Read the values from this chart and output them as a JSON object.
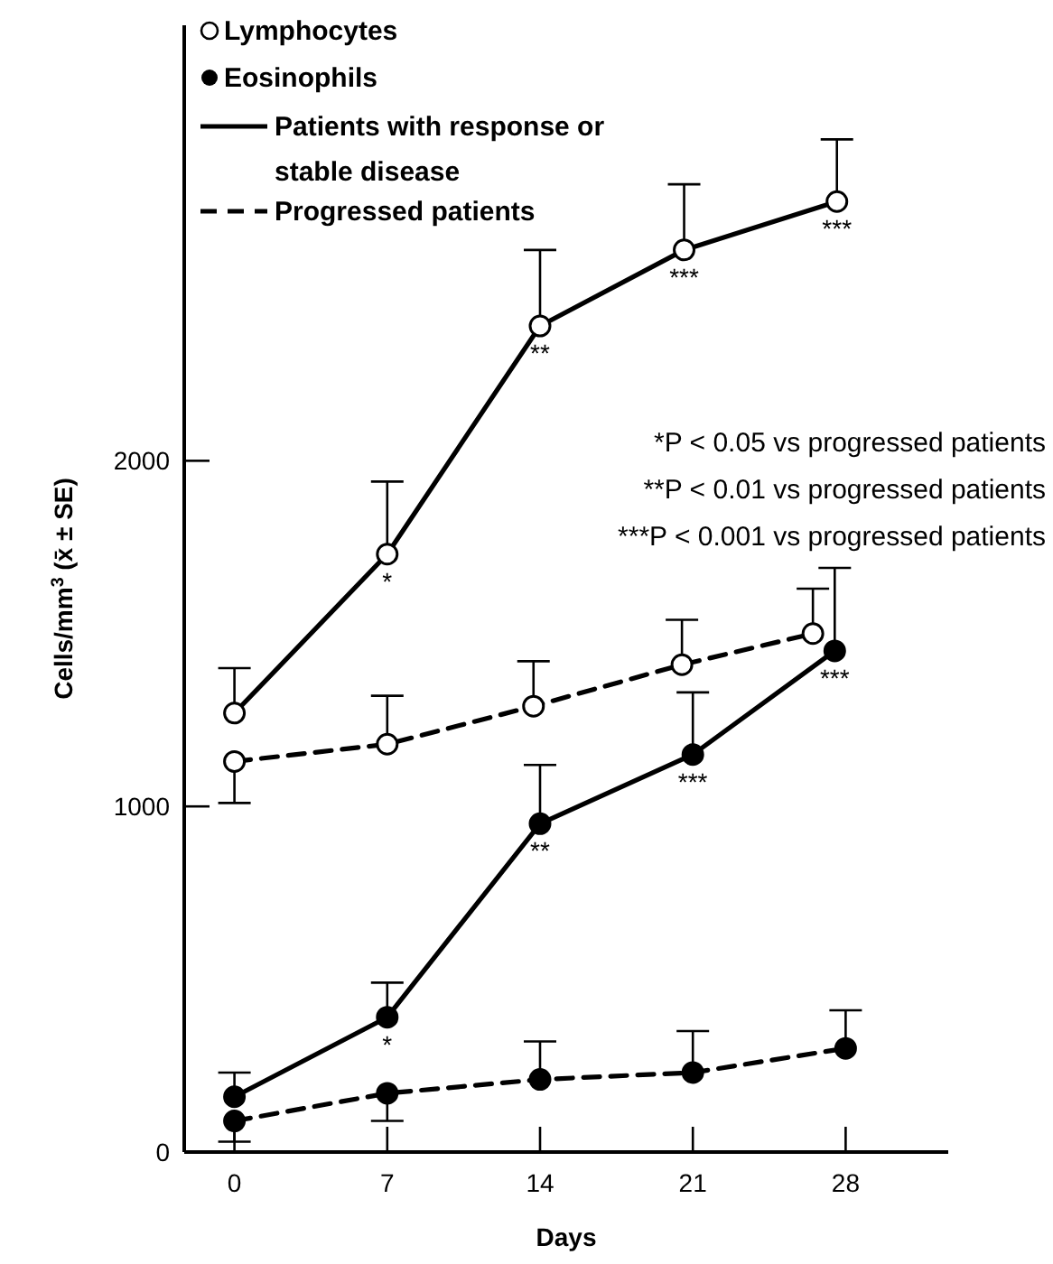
{
  "chart_data": {
    "type": "line",
    "xlabel": "Days",
    "ylabel": "Cells/mm$^{3}$ (x̄ ± SE)",
    "xlim": [
      -2.3,
      32.7
    ],
    "xticks": [
      0,
      7,
      14,
      21,
      28
    ],
    "ylim": [
      0,
      3260
    ],
    "yticks": [
      0,
      1000,
      2000
    ],
    "marker": "circle",
    "grid": false,
    "series": [
      {
        "color": "#000000",
        "line_style": "solid",
        "x": [
          0,
          7,
          14,
          20.6,
          27.6
        ],
        "values": [
          1270,
          1730,
          2390,
          2610,
          2750
        ],
        "errors": [
          [
            1270,
            1400
          ],
          [
            1730,
            1940
          ],
          [
            2390,
            2610
          ],
          [
            2610,
            2800
          ],
          [
            2750,
            2930
          ]
        ]
      },
      {
        "color": "#000000",
        "line_style": "dashed",
        "x": [
          0,
          7,
          13.7,
          20.5,
          26.5
        ],
        "values": [
          1130,
          1180,
          1290,
          1410,
          1500
        ],
        "errors": [
          [
            1010,
            1130
          ],
          [
            1180,
            1320
          ],
          [
            1290,
            1420
          ],
          [
            1410,
            1540
          ],
          [
            1500,
            1630
          ]
        ]
      },
      {
        "color": "#000000",
        "line_style": "solid",
        "x": [
          0,
          7,
          14,
          21,
          27.5
        ],
        "values": [
          160,
          390,
          950,
          1150,
          1450
        ],
        "errors": [
          [
            160,
            230
          ],
          [
            390,
            490
          ],
          [
            950,
            1120
          ],
          [
            1150,
            1330
          ],
          [
            1450,
            1690
          ]
        ]
      },
      {
        "color": "#000000",
        "line_style": "dashed",
        "x": [
          0,
          7,
          14,
          21,
          28
        ],
        "values": [
          90,
          170,
          210,
          230,
          300
        ],
        "errors": [
          [
            30,
            90
          ],
          [
            90,
            170
          ],
          [
            210,
            320
          ],
          [
            230,
            350
          ],
          [
            300,
            410
          ]
        ]
      }
    ],
    "annotations": [
      "Lymphocytes",
      "Eosinophils",
      "Patients with response or stable disease",
      "Progressed patients",
      "*P < 0.05 vs progressed patients",
      "**P < 0.01 vs progressed patients",
      "***P < 0.001 vs progressed patients",
      {
        "text": "*",
        "x": 7,
        "y": 1730
      },
      {
        "text": "**",
        "x": 14,
        "y": 2390
      },
      {
        "text": "***",
        "x": 20.6,
        "y": 2610
      },
      {
        "text": "***",
        "x": 27.6,
        "y": 2750
      },
      {
        "text": "*",
        "x": 7,
        "y": 390
      },
      {
        "text": "**",
        "x": 14,
        "y": 950
      },
      {
        "text": "***",
        "x": 21,
        "y": 1150
      },
      {
        "text": "***",
        "x": 27.5,
        "y": 1450
      }
    ]
  }
}
